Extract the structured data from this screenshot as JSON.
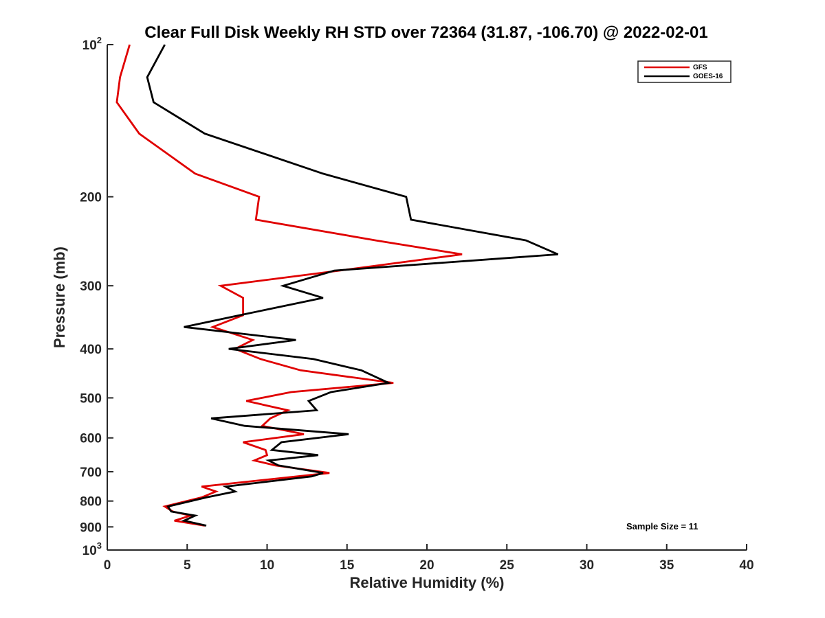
{
  "chart_data": {
    "type": "line",
    "title": "Clear Full Disk Weekly RH STD over 72364 (31.87, -106.70) @ 2022-02-01",
    "xlabel": "Relative Humidity (%)",
    "ylabel": "Pressure (mb)",
    "xlim": [
      0,
      40
    ],
    "ylim": [
      100,
      1000
    ],
    "yscale": "log",
    "y_reversed": true,
    "grid": false,
    "legend_position": "top-right",
    "x_ticks": [
      0,
      5,
      10,
      15,
      20,
      25,
      30,
      35,
      40
    ],
    "x_tick_labels": [
      "0",
      "5",
      "10",
      "15",
      "20",
      "25",
      "30",
      "35",
      "40"
    ],
    "y_ticks": [
      {
        "value": 100,
        "base": "10",
        "exp": "2"
      },
      {
        "value": 200,
        "label": "200"
      },
      {
        "value": 300,
        "label": "300"
      },
      {
        "value": 400,
        "label": "400"
      },
      {
        "value": 500,
        "label": "500"
      },
      {
        "value": 600,
        "label": "600"
      },
      {
        "value": 700,
        "label": "700"
      },
      {
        "value": 800,
        "label": "800"
      },
      {
        "value": 900,
        "label": "900"
      },
      {
        "value": 1000,
        "base": "10",
        "exp": "3"
      }
    ],
    "annotation": "Sample Size = 11",
    "series": [
      {
        "name": "GFS",
        "color": "#e00000",
        "points": [
          [
            1.4,
            100
          ],
          [
            0.8,
            116
          ],
          [
            0.6,
            130
          ],
          [
            2.0,
            150
          ],
          [
            5.5,
            180
          ],
          [
            9.5,
            200
          ],
          [
            9.3,
            222
          ],
          [
            16.8,
            244
          ],
          [
            22.2,
            260
          ],
          [
            14.5,
            280
          ],
          [
            7.1,
            300
          ],
          [
            8.5,
            317
          ],
          [
            8.5,
            343
          ],
          [
            6.6,
            362
          ],
          [
            9.1,
            384
          ],
          [
            8.0,
            400
          ],
          [
            9.6,
            419
          ],
          [
            12.1,
            441
          ],
          [
            17.9,
            467
          ],
          [
            11.5,
            487
          ],
          [
            8.7,
            507
          ],
          [
            11.3,
            529
          ],
          [
            10.2,
            549
          ],
          [
            9.7,
            568
          ],
          [
            12.3,
            590
          ],
          [
            8.5,
            612
          ],
          [
            9.9,
            634
          ],
          [
            10.0,
            649
          ],
          [
            9.2,
            665
          ],
          [
            10.5,
            680
          ],
          [
            13.9,
            704
          ],
          [
            5.9,
            749
          ],
          [
            6.8,
            766
          ],
          [
            5.9,
            787
          ],
          [
            3.6,
            820
          ],
          [
            4.1,
            839
          ],
          [
            5.2,
            855
          ],
          [
            4.2,
            875
          ],
          [
            6.1,
            895
          ]
        ]
      },
      {
        "name": "GOES-16",
        "color": "#000000",
        "points": [
          [
            3.6,
            100
          ],
          [
            2.5,
            116
          ],
          [
            2.9,
            130
          ],
          [
            6.1,
            150
          ],
          [
            13.5,
            180
          ],
          [
            18.7,
            200
          ],
          [
            19.0,
            222
          ],
          [
            26.2,
            244
          ],
          [
            28.2,
            260
          ],
          [
            14.2,
            280
          ],
          [
            11.0,
            300
          ],
          [
            13.5,
            317
          ],
          [
            8.3,
            343
          ],
          [
            4.8,
            362
          ],
          [
            11.8,
            384
          ],
          [
            7.6,
            400
          ],
          [
            12.9,
            419
          ],
          [
            15.9,
            441
          ],
          [
            17.6,
            467
          ],
          [
            14.0,
            487
          ],
          [
            12.6,
            507
          ],
          [
            13.1,
            529
          ],
          [
            6.5,
            549
          ],
          [
            8.6,
            568
          ],
          [
            15.1,
            590
          ],
          [
            10.9,
            612
          ],
          [
            10.3,
            634
          ],
          [
            13.2,
            649
          ],
          [
            10.1,
            665
          ],
          [
            10.7,
            680
          ],
          [
            13.5,
            704
          ],
          [
            12.8,
            715
          ],
          [
            7.4,
            749
          ],
          [
            8.0,
            766
          ],
          [
            6.2,
            787
          ],
          [
            3.8,
            820
          ],
          [
            4.0,
            839
          ],
          [
            5.5,
            855
          ],
          [
            4.8,
            875
          ],
          [
            6.2,
            895
          ]
        ]
      }
    ]
  }
}
